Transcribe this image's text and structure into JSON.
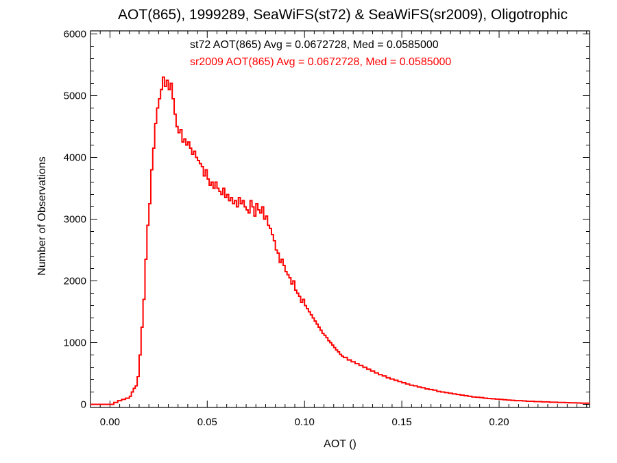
{
  "chart_data": {
    "type": "line",
    "step": true,
    "title": "AOT(865), 1999289, SeaWiFS(st72) & SeaWiFS(sr2009), Oligotrophic",
    "xlabel": "AOT ()",
    "ylabel": "Number of Observations",
    "xlim": [
      -0.01,
      0.2465
    ],
    "ylim": [
      -50,
      6050
    ],
    "xticks": [
      0.0,
      0.05,
      0.1,
      0.15,
      0.2
    ],
    "xtick_labels": [
      "0.00",
      "0.05",
      "0.10",
      "0.15",
      "0.20"
    ],
    "yticks": [
      0,
      1000,
      2000,
      3000,
      4000,
      5000,
      6000
    ],
    "ytick_labels": [
      "0",
      "1000",
      "2000",
      "3000",
      "4000",
      "5000",
      "6000"
    ],
    "grid": false,
    "annotations": [
      {
        "text": "st72 AOT(865) Avg = 0.0672728, Med = 0.0585000",
        "color": "#000000"
      },
      {
        "text": "sr2009 AOT(865) Avg = 0.0672728, Med = 0.0585000",
        "color": "#ff0000"
      }
    ],
    "series": [
      {
        "color": "#ff0000",
        "points": [
          [
            -0.01,
            0
          ],
          [
            0.0,
            0
          ],
          [
            0.002,
            30
          ],
          [
            0.004,
            60
          ],
          [
            0.006,
            80
          ],
          [
            0.008,
            100
          ],
          [
            0.01,
            130
          ],
          [
            0.011,
            200
          ],
          [
            0.012,
            260
          ],
          [
            0.013,
            300
          ],
          [
            0.014,
            450
          ],
          [
            0.015,
            800
          ],
          [
            0.016,
            1250
          ],
          [
            0.017,
            1700
          ],
          [
            0.018,
            2350
          ],
          [
            0.019,
            2900
          ],
          [
            0.02,
            3250
          ],
          [
            0.021,
            3800
          ],
          [
            0.022,
            4150
          ],
          [
            0.023,
            4550
          ],
          [
            0.024,
            4800
          ],
          [
            0.025,
            4950
          ],
          [
            0.026,
            5100
          ],
          [
            0.027,
            5300
          ],
          [
            0.028,
            5150
          ],
          [
            0.029,
            5250
          ],
          [
            0.03,
            5100
          ],
          [
            0.031,
            5200
          ],
          [
            0.032,
            4950
          ],
          [
            0.033,
            4700
          ],
          [
            0.034,
            4500
          ],
          [
            0.035,
            4400
          ],
          [
            0.036,
            4450
          ],
          [
            0.037,
            4250
          ],
          [
            0.038,
            4300
          ],
          [
            0.039,
            4200
          ],
          [
            0.04,
            4250
          ],
          [
            0.041,
            4150
          ],
          [
            0.042,
            4050
          ],
          [
            0.043,
            4100
          ],
          [
            0.044,
            4000
          ],
          [
            0.045,
            3950
          ],
          [
            0.046,
            3900
          ],
          [
            0.047,
            3850
          ],
          [
            0.048,
            3700
          ],
          [
            0.049,
            3800
          ],
          [
            0.05,
            3650
          ],
          [
            0.051,
            3550
          ],
          [
            0.052,
            3600
          ],
          [
            0.053,
            3500
          ],
          [
            0.054,
            3600
          ],
          [
            0.055,
            3500
          ],
          [
            0.056,
            3450
          ],
          [
            0.057,
            3400
          ],
          [
            0.058,
            3500
          ],
          [
            0.059,
            3350
          ],
          [
            0.06,
            3400
          ],
          [
            0.061,
            3300
          ],
          [
            0.062,
            3350
          ],
          [
            0.063,
            3250
          ],
          [
            0.064,
            3300
          ],
          [
            0.065,
            3200
          ],
          [
            0.066,
            3350
          ],
          [
            0.067,
            3250
          ],
          [
            0.068,
            3300
          ],
          [
            0.069,
            3200
          ],
          [
            0.07,
            3150
          ],
          [
            0.071,
            3100
          ],
          [
            0.072,
            3300
          ],
          [
            0.073,
            3200
          ],
          [
            0.074,
            3050
          ],
          [
            0.075,
            3250
          ],
          [
            0.076,
            3150
          ],
          [
            0.077,
            3100
          ],
          [
            0.078,
            3200
          ],
          [
            0.079,
            3000
          ],
          [
            0.08,
            3050
          ],
          [
            0.081,
            2900
          ],
          [
            0.082,
            2850
          ],
          [
            0.083,
            2750
          ],
          [
            0.084,
            2650
          ],
          [
            0.085,
            2500
          ],
          [
            0.086,
            2450
          ],
          [
            0.087,
            2300
          ],
          [
            0.088,
            2350
          ],
          [
            0.089,
            2250
          ],
          [
            0.09,
            2150
          ],
          [
            0.091,
            2100
          ],
          [
            0.092,
            2050
          ],
          [
            0.093,
            1950
          ],
          [
            0.094,
            2000
          ],
          [
            0.095,
            1850
          ],
          [
            0.096,
            1800
          ],
          [
            0.097,
            1750
          ],
          [
            0.098,
            1650
          ],
          [
            0.099,
            1700
          ],
          [
            0.1,
            1600
          ],
          [
            0.101,
            1550
          ],
          [
            0.102,
            1500
          ],
          [
            0.103,
            1450
          ],
          [
            0.104,
            1400
          ],
          [
            0.105,
            1350
          ],
          [
            0.106,
            1300
          ],
          [
            0.107,
            1250
          ],
          [
            0.108,
            1200
          ],
          [
            0.109,
            1150
          ],
          [
            0.11,
            1120
          ],
          [
            0.111,
            1080
          ],
          [
            0.112,
            1030
          ],
          [
            0.113,
            1000
          ],
          [
            0.114,
            960
          ],
          [
            0.115,
            920
          ],
          [
            0.116,
            880
          ],
          [
            0.117,
            850
          ],
          [
            0.118,
            810
          ],
          [
            0.119,
            780
          ],
          [
            0.12,
            760
          ],
          [
            0.122,
            720
          ],
          [
            0.124,
            690
          ],
          [
            0.126,
            660
          ],
          [
            0.128,
            630
          ],
          [
            0.13,
            600
          ],
          [
            0.132,
            570
          ],
          [
            0.134,
            540
          ],
          [
            0.136,
            510
          ],
          [
            0.138,
            480
          ],
          [
            0.14,
            460
          ],
          [
            0.142,
            430
          ],
          [
            0.144,
            410
          ],
          [
            0.146,
            390
          ],
          [
            0.148,
            370
          ],
          [
            0.15,
            350
          ],
          [
            0.152,
            330
          ],
          [
            0.154,
            310
          ],
          [
            0.156,
            300
          ],
          [
            0.158,
            280
          ],
          [
            0.16,
            270
          ],
          [
            0.162,
            250
          ],
          [
            0.164,
            240
          ],
          [
            0.166,
            230
          ],
          [
            0.168,
            210
          ],
          [
            0.17,
            200
          ],
          [
            0.172,
            190
          ],
          [
            0.174,
            180
          ],
          [
            0.176,
            170
          ],
          [
            0.178,
            160
          ],
          [
            0.18,
            150
          ],
          [
            0.182,
            140
          ],
          [
            0.184,
            130
          ],
          [
            0.186,
            120
          ],
          [
            0.188,
            115
          ],
          [
            0.19,
            110
          ],
          [
            0.192,
            100
          ],
          [
            0.194,
            95
          ],
          [
            0.196,
            90
          ],
          [
            0.198,
            85
          ],
          [
            0.2,
            80
          ],
          [
            0.202,
            75
          ],
          [
            0.204,
            70
          ],
          [
            0.206,
            65
          ],
          [
            0.208,
            60
          ],
          [
            0.21,
            60
          ],
          [
            0.212,
            55
          ],
          [
            0.214,
            50
          ],
          [
            0.216,
            50
          ],
          [
            0.218,
            45
          ],
          [
            0.22,
            45
          ],
          [
            0.222,
            40
          ],
          [
            0.224,
            40
          ],
          [
            0.226,
            35
          ],
          [
            0.228,
            35
          ],
          [
            0.23,
            30
          ],
          [
            0.232,
            30
          ],
          [
            0.234,
            28
          ],
          [
            0.236,
            25
          ],
          [
            0.238,
            25
          ],
          [
            0.24,
            22
          ],
          [
            0.242,
            20
          ],
          [
            0.244,
            20
          ],
          [
            0.246,
            20
          ]
        ]
      }
    ]
  }
}
